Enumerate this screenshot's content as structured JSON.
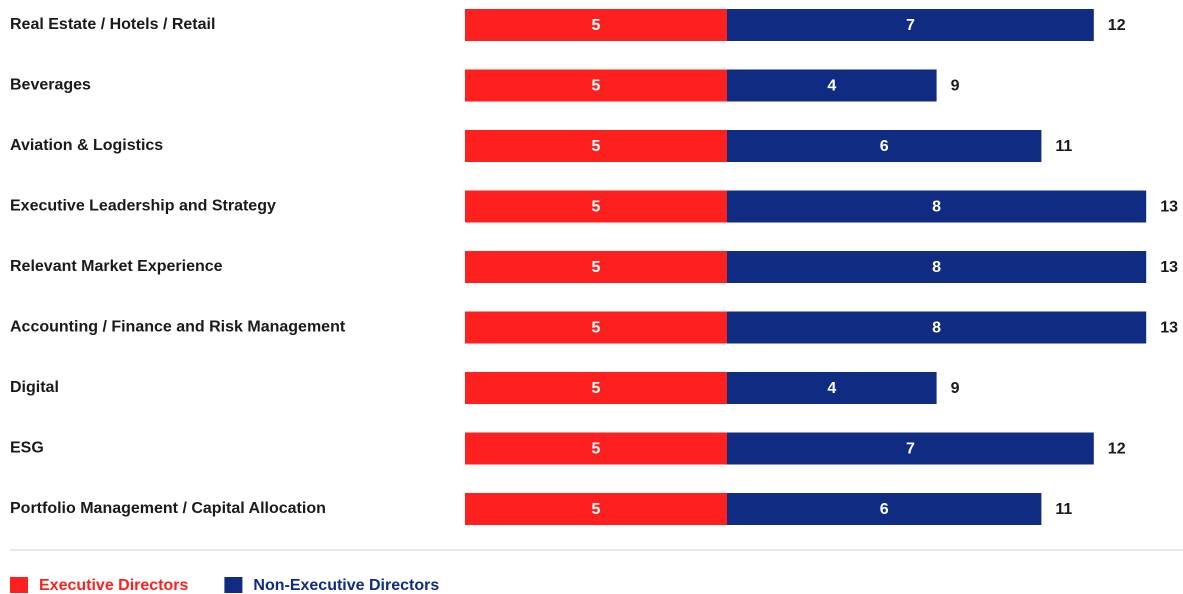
{
  "chart_data": {
    "type": "bar",
    "orientation": "horizontal",
    "stacked": true,
    "categories": [
      "Real Estate / Hotels / Retail",
      "Beverages",
      "Aviation & Logistics",
      "Executive Leadership and Strategy",
      "Relevant Market Experience",
      "Accounting / Finance and Risk Management",
      "Digital",
      "ESG",
      "Portfolio Management / Capital Allocation"
    ],
    "series": [
      {
        "name": "Executive Directors",
        "color": "#fe1f1f",
        "values": [
          5,
          5,
          5,
          5,
          5,
          5,
          5,
          5,
          5
        ]
      },
      {
        "name": "Non-Executive Directors",
        "color": "#0f2b82",
        "values": [
          7,
          4,
          6,
          8,
          8,
          8,
          4,
          7,
          6
        ]
      }
    ],
    "totals": [
      12,
      9,
      11,
      13,
      13,
      13,
      9,
      12,
      11
    ],
    "legend": "bottom-left"
  }
}
